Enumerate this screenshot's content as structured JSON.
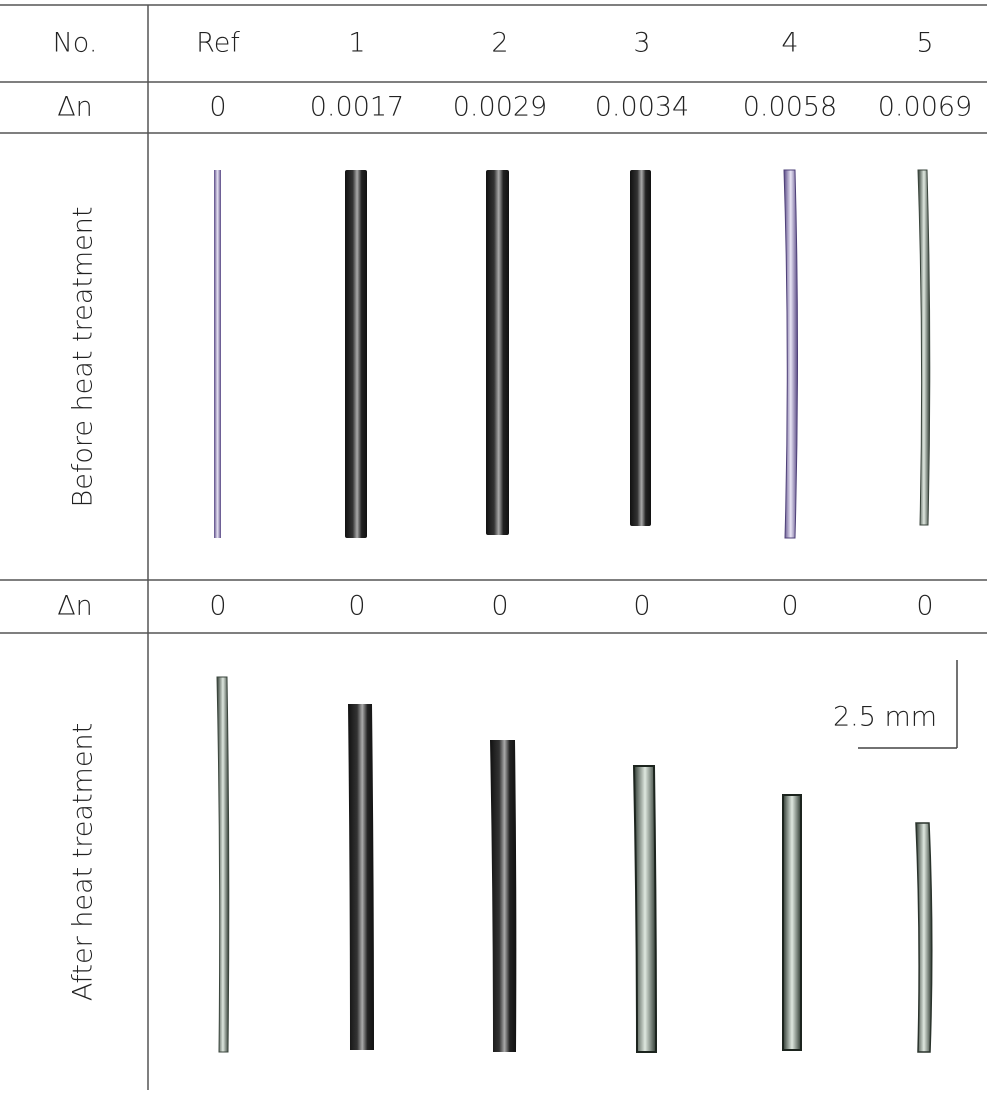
{
  "table": {
    "header": [
      "No.",
      "Ref",
      "1",
      "2",
      "3",
      "4",
      "5"
    ],
    "rows": [
      [
        "Δn",
        "0",
        "0.0017",
        "0.0029",
        "0.0034",
        "0.0058",
        "0.0069"
      ],
      [
        "Δn",
        "0",
        "0",
        "0",
        "0",
        "0",
        "0"
      ]
    ]
  },
  "sections": [
    "Before heat treatment",
    "After heat treatment"
  ],
  "scale_bar": "2.5 mm"
}
